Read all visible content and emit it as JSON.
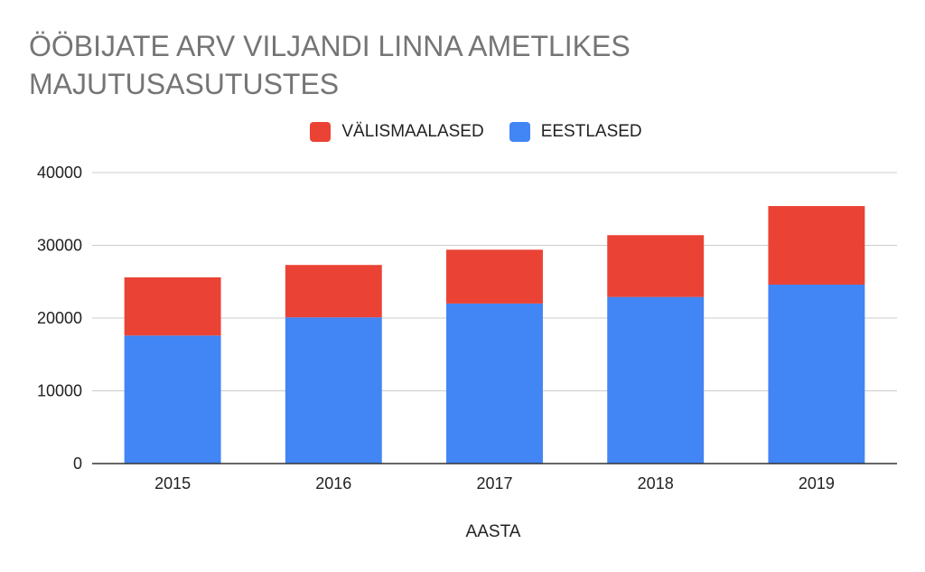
{
  "chart_data": {
    "type": "bar",
    "stacked": true,
    "title": "ÖÖBIJATE ARV VILJANDI LINNA AMETLIKES MAJUTUSASUTUSTES",
    "xlabel": "AASTA",
    "ylabel": "",
    "categories": [
      "2015",
      "2016",
      "2017",
      "2018",
      "2019"
    ],
    "series": [
      {
        "name": "EESTLASED",
        "color": "#4285f4",
        "values": [
          17600,
          20100,
          22000,
          22900,
          24600
        ]
      },
      {
        "name": "VÄLISMAALASED",
        "color": "#ea4335",
        "values": [
          8000,
          7200,
          7400,
          8500,
          10800
        ]
      }
    ],
    "legend_order": [
      "VÄLISMAALASED",
      "EESTLASED"
    ],
    "ylim": [
      0,
      40000
    ],
    "yticks": [
      "0",
      "10000",
      "20000",
      "30000",
      "40000"
    ],
    "grid": true,
    "legend_position": "top"
  }
}
